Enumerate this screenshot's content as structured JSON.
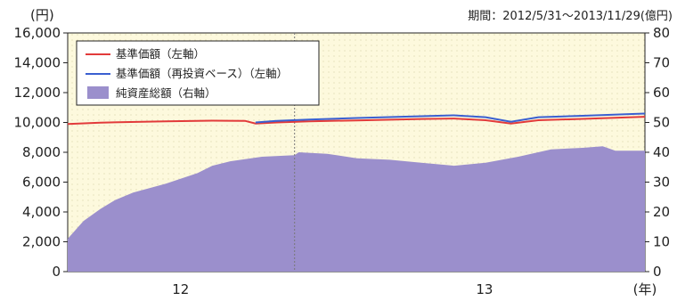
{
  "chart_data": {
    "type": "line",
    "period_label": "期間：2012/5/31～2013/11/29(億円)",
    "left_unit": "(円)",
    "year_unit": "(年)",
    "y_left": {
      "min": 0,
      "max": 16000,
      "ticks": [
        "0",
        "2,000",
        "4,000",
        "6,000",
        "8,000",
        "10,000",
        "12,000",
        "14,000",
        "16,000"
      ]
    },
    "y_right": {
      "min": 0,
      "max": 80,
      "ticks": [
        "0",
        "10",
        "20",
        "30",
        "40",
        "50",
        "60",
        "70",
        "80"
      ]
    },
    "x_ticks": [
      {
        "label": "12",
        "x": "2012-09-15"
      },
      {
        "label": "13",
        "x": "2013-06-30"
      }
    ],
    "x_range": [
      "2012-05-31",
      "2013-11-29"
    ],
    "year_divider": "2013-01-01",
    "series": [
      {
        "name": "基準価額（左軸）",
        "axis": "left",
        "color": "#e23a3a",
        "points": [
          [
            "2012-05-31",
            9900
          ],
          [
            "2012-07-01",
            9990
          ],
          [
            "2012-09-01",
            10070
          ],
          [
            "2012-10-15",
            10120
          ],
          [
            "2012-11-15",
            10110
          ],
          [
            "2012-11-25",
            9930
          ],
          [
            "2012-12-15",
            10000
          ],
          [
            "2013-01-15",
            10080
          ],
          [
            "2013-03-01",
            10140
          ],
          [
            "2013-05-01",
            10230
          ],
          [
            "2013-06-01",
            10260
          ],
          [
            "2013-07-01",
            10150
          ],
          [
            "2013-07-25",
            9920
          ],
          [
            "2013-08-20",
            10150
          ],
          [
            "2013-10-01",
            10240
          ],
          [
            "2013-11-29",
            10380
          ]
        ]
      },
      {
        "name": "基準価額（再投資ベース）（左軸）",
        "axis": "left",
        "color": "#3a5fd0",
        "points": [
          [
            "2012-11-25",
            10000
          ],
          [
            "2012-12-15",
            10100
          ],
          [
            "2013-01-15",
            10200
          ],
          [
            "2013-03-01",
            10300
          ],
          [
            "2013-05-01",
            10420
          ],
          [
            "2013-06-01",
            10480
          ],
          [
            "2013-07-01",
            10350
          ],
          [
            "2013-07-25",
            10050
          ],
          [
            "2013-08-20",
            10350
          ],
          [
            "2013-10-01",
            10450
          ],
          [
            "2013-11-29",
            10600
          ]
        ]
      },
      {
        "name": "純資産総額（右軸）",
        "axis": "right",
        "type": "area",
        "color": "#9b8fcc",
        "points": [
          [
            "2012-05-31",
            11
          ],
          [
            "2012-06-15",
            17
          ],
          [
            "2012-07-01",
            21
          ],
          [
            "2012-07-15",
            24
          ],
          [
            "2012-08-01",
            26.5
          ],
          [
            "2012-09-01",
            29.5
          ],
          [
            "2012-10-01",
            33
          ],
          [
            "2012-10-15",
            35.5
          ],
          [
            "2012-11-01",
            37
          ],
          [
            "2012-12-01",
            38.5
          ],
          [
            "2013-01-01",
            39
          ],
          [
            "2013-01-05",
            40
          ],
          [
            "2013-02-01",
            39.5
          ],
          [
            "2013-03-01",
            38
          ],
          [
            "2013-04-01",
            37.5
          ],
          [
            "2013-05-01",
            36.5
          ],
          [
            "2013-06-01",
            35.5
          ],
          [
            "2013-07-01",
            36.5
          ],
          [
            "2013-08-01",
            38.5
          ],
          [
            "2013-09-01",
            41
          ],
          [
            "2013-10-01",
            41.5
          ],
          [
            "2013-10-20",
            42
          ],
          [
            "2013-11-01",
            40.5
          ],
          [
            "2013-11-29",
            40.5
          ]
        ]
      }
    ],
    "grid": false,
    "legend_position": "top-left"
  }
}
